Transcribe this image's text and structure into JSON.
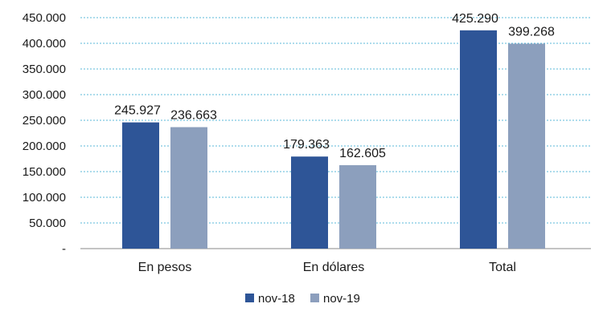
{
  "chart_data": {
    "type": "bar",
    "categories": [
      "En pesos",
      "En dólares",
      "Total"
    ],
    "series": [
      {
        "name": "nov-18",
        "values": [
          245927,
          179363,
          425290
        ],
        "labels": [
          "245.927",
          "179.363",
          "425.290"
        ],
        "color": "#2e5597"
      },
      {
        "name": "nov-19",
        "values": [
          236663,
          162605,
          399268
        ],
        "labels": [
          "236.663",
          "162.605",
          "399.268"
        ],
        "color": "#8c9fbd"
      }
    ],
    "ylim": [
      0,
      450000
    ],
    "yticks": [
      0,
      50000,
      100000,
      150000,
      200000,
      250000,
      300000,
      350000,
      400000,
      450000
    ],
    "ytick_labels": [
      "-",
      "50.000",
      "100.000",
      "150.000",
      "200.000",
      "250.000",
      "300.000",
      "350.000",
      "400.000",
      "450.000"
    ],
    "grid": true,
    "legend": "bottom"
  }
}
